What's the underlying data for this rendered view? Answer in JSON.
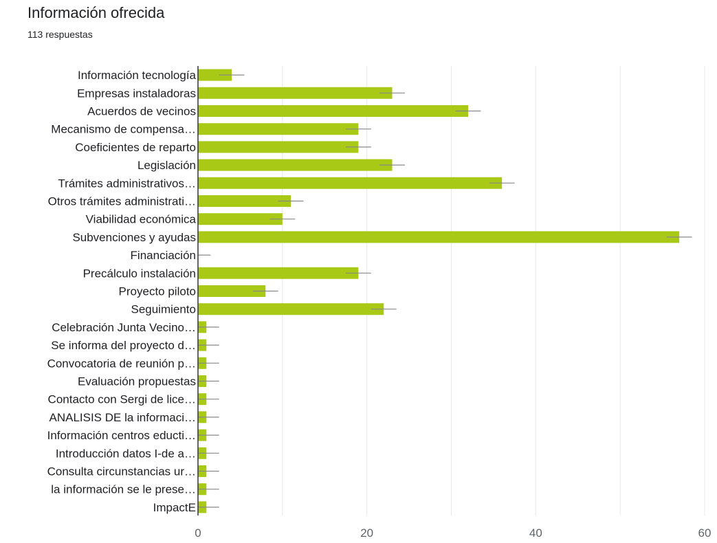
{
  "header": {
    "title": "Información ofrecida",
    "subtitle": "113 respuestas"
  },
  "chart_data": {
    "type": "bar",
    "orientation": "horizontal",
    "title": "Información ofrecida",
    "subtitle": "113 respuestas",
    "xlabel": "",
    "ylabel": "",
    "xlim": [
      0,
      60
    ],
    "x_ticks": [
      0,
      20,
      40,
      60
    ],
    "grid": true,
    "bar_color": "#a8c916",
    "errorbar_color": "#888888",
    "categories": [
      "Información tecnología",
      "Empresas instaladoras",
      "Acuerdos de vecinos",
      "Mecanismo de compensa…",
      "Coeficientes de reparto",
      "Legislación",
      "Trámites administrativos…",
      "Otros trámites administrati…",
      "Viabilidad económica",
      "Subvenciones y ayudas",
      "Financiación",
      "Precálculo instalación",
      "Proyecto piloto",
      "Seguimiento",
      "Celebración Junta Vecino…",
      "Se informa del proyecto d…",
      "Convocatoria de reunión p…",
      "Evaluación propuestas",
      "Contacto con Sergi de lice…",
      "ANALISIS DE la informaci…",
      "Información centros educti…",
      "Introducción datos I-de a…",
      "Consulta circunstancias ur…",
      "la información se le prese…",
      "ImpactE"
    ],
    "values": [
      4,
      23,
      32,
      19,
      19,
      23,
      36,
      11,
      10,
      57,
      0,
      19,
      8,
      22,
      1,
      1,
      1,
      1,
      1,
      1,
      1,
      1,
      1,
      1,
      1
    ]
  }
}
